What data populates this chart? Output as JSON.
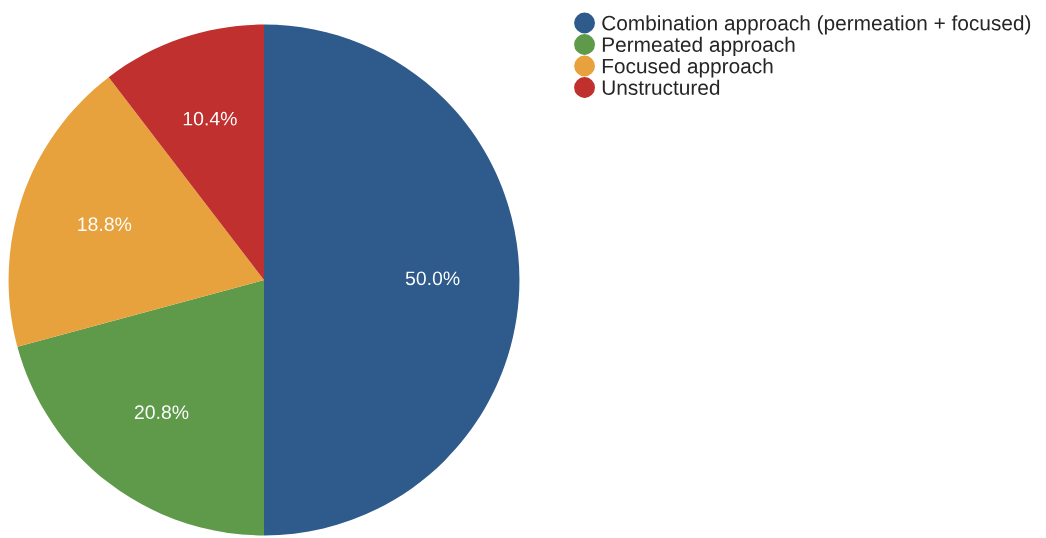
{
  "chart_data": {
    "type": "pie",
    "categories": [
      "Combination approach (permeation + focused)",
      "Permeated approach",
      "Focused approach",
      "Unstructured"
    ],
    "values": [
      50.0,
      20.8,
      18.8,
      10.4
    ],
    "value_labels": [
      "50.0%",
      "20.8%",
      "18.8%",
      "10.4%"
    ],
    "colors": [
      "#2e5a8c",
      "#5f9a4a",
      "#e8a23d",
      "#c0302f"
    ],
    "legend": "top right",
    "marker": "circle"
  }
}
